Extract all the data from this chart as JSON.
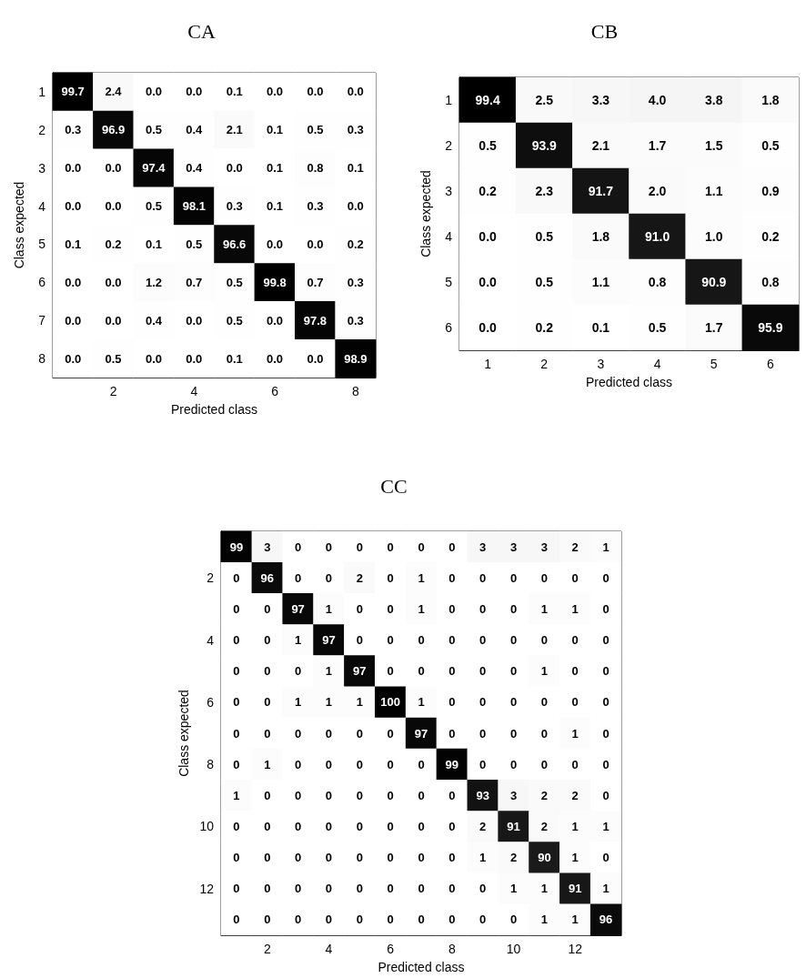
{
  "chart_data": [
    {
      "type": "heatmap",
      "title": "CA",
      "xlabel": "Predicted class",
      "ylabel": "Class expected",
      "data_labels": true,
      "categories": [
        null,
        "2",
        null,
        "4",
        null,
        "6",
        null,
        "8"
      ],
      "y_categories": [
        "1",
        "2",
        "3",
        "4",
        "5",
        "6",
        "7",
        "8"
      ],
      "cells": [
        [
          99.7,
          2.4,
          0.0,
          0.0,
          0.1,
          0.0,
          0.0,
          0.0
        ],
        [
          0.3,
          96.9,
          0.5,
          0.4,
          2.1,
          0.1,
          0.5,
          0.3
        ],
        [
          0.0,
          0.0,
          97.4,
          0.4,
          0.0,
          0.1,
          0.8,
          0.1
        ],
        [
          0.0,
          0.0,
          0.5,
          98.1,
          0.3,
          0.1,
          0.3,
          0.0
        ],
        [
          0.1,
          0.2,
          0.1,
          0.5,
          96.6,
          0.0,
          0.0,
          0.2
        ],
        [
          0.0,
          0.0,
          1.2,
          0.7,
          0.5,
          99.8,
          0.7,
          0.3
        ],
        [
          0.0,
          0.0,
          0.4,
          0.0,
          0.5,
          0.0,
          97.8,
          0.3
        ],
        [
          0.0,
          0.5,
          0.0,
          0.0,
          0.1,
          0.0,
          0.0,
          98.9
        ]
      ],
      "cell_labels": [
        [
          "99.7",
          "2.4",
          "0.0",
          "0.0",
          "0.1",
          "0.0",
          "0.0",
          "0.0"
        ],
        [
          "0.3",
          "96.9",
          "0.5",
          "0.4",
          "2.1",
          "0.1",
          "0.5",
          "0.3"
        ],
        [
          "0.0",
          "0.0",
          "97.4",
          "0.4",
          "0.0",
          "0.1",
          "0.8",
          "0.1"
        ],
        [
          "0.0",
          "0.0",
          "0.5",
          "98.1",
          "0.3",
          "0.1",
          "0.3",
          "0.0"
        ],
        [
          "0.1",
          "0.2",
          "0.1",
          "0.5",
          "96.6",
          "0.0",
          "0.0",
          "0.2"
        ],
        [
          "0.0",
          "0.0",
          "1.2",
          "0.7",
          "0.5",
          "99.8",
          "0.7",
          "0.3"
        ],
        [
          "0.0",
          "0.0",
          "0.4",
          "0.0",
          "0.5",
          "0.0",
          "97.8",
          "0.3"
        ],
        [
          "0.0",
          "0.5",
          "0.0",
          "0.0",
          "0.1",
          "0.0",
          "0.0",
          "98.9"
        ]
      ]
    },
    {
      "type": "heatmap",
      "title": "CB",
      "xlabel": "Predicted class",
      "ylabel": "Class expected",
      "data_labels": true,
      "categories": [
        "1",
        "2",
        "3",
        "4",
        "5",
        "6"
      ],
      "y_categories": [
        "1",
        "2",
        "3",
        "4",
        "5",
        "6"
      ],
      "cells": [
        [
          99.4,
          2.5,
          3.3,
          4.0,
          3.8,
          1.8
        ],
        [
          0.5,
          93.9,
          2.1,
          1.7,
          1.5,
          0.5
        ],
        [
          0.2,
          2.3,
          91.7,
          2.0,
          1.1,
          0.9
        ],
        [
          0.0,
          0.5,
          1.8,
          91.0,
          1.0,
          0.2
        ],
        [
          0.0,
          0.5,
          1.1,
          0.8,
          90.9,
          0.8
        ],
        [
          0.0,
          0.2,
          0.1,
          0.5,
          1.7,
          95.9
        ]
      ],
      "cell_labels": [
        [
          "99.4",
          "2.5",
          "3.3",
          "4.0",
          "3.8",
          "1.8"
        ],
        [
          "0.5",
          "93.9",
          "2.1",
          "1.7",
          "1.5",
          "0.5"
        ],
        [
          "0.2",
          "2.3",
          "91.7",
          "2.0",
          "1.1",
          "0.9"
        ],
        [
          "0.0",
          "0.5",
          "1.8",
          "91.0",
          "1.0",
          "0.2"
        ],
        [
          "0.0",
          "0.5",
          "1.1",
          "0.8",
          "90.9",
          "0.8"
        ],
        [
          "0.0",
          "0.2",
          "0.1",
          "0.5",
          "1.7",
          "95.9"
        ]
      ]
    },
    {
      "type": "heatmap",
      "title": "CC",
      "xlabel": "Predicted class",
      "ylabel": "Class expected",
      "data_labels": true,
      "categories": [
        null,
        "2",
        null,
        "4",
        null,
        "6",
        null,
        "8",
        null,
        "10",
        null,
        "12",
        null
      ],
      "y_categories": [
        null,
        "2",
        null,
        "4",
        null,
        "6",
        null,
        "8",
        null,
        "10",
        null,
        "12",
        null
      ],
      "cells": [
        [
          99,
          3,
          0,
          0,
          0,
          0,
          0,
          0,
          3,
          3,
          3,
          2,
          1
        ],
        [
          0,
          96,
          0,
          0,
          2,
          0,
          1,
          0,
          0,
          0,
          0,
          0,
          0
        ],
        [
          0,
          0,
          97,
          1,
          0,
          0,
          1,
          0,
          0,
          0,
          1,
          1,
          0
        ],
        [
          0,
          0,
          1,
          97,
          0,
          0,
          0,
          0,
          0,
          0,
          0,
          0,
          0
        ],
        [
          0,
          0,
          0,
          1,
          97,
          0,
          0,
          0,
          0,
          0,
          1,
          0,
          0
        ],
        [
          0,
          0,
          1,
          1,
          1,
          100,
          1,
          0,
          0,
          0,
          0,
          0,
          0
        ],
        [
          0,
          0,
          0,
          0,
          0,
          0,
          97,
          0,
          0,
          0,
          0,
          1,
          0
        ],
        [
          0,
          1,
          0,
          0,
          0,
          0,
          0,
          99,
          0,
          0,
          0,
          0,
          0
        ],
        [
          1,
          0,
          0,
          0,
          0,
          0,
          0,
          0,
          93,
          3,
          2,
          2,
          0
        ],
        [
          0,
          0,
          0,
          0,
          0,
          0,
          0,
          0,
          2,
          91,
          2,
          1,
          1
        ],
        [
          0,
          0,
          0,
          0,
          0,
          0,
          0,
          0,
          1,
          2,
          90,
          1,
          0
        ],
        [
          0,
          0,
          0,
          0,
          0,
          0,
          0,
          0,
          0,
          1,
          1,
          91,
          1
        ],
        [
          0,
          0,
          0,
          0,
          0,
          0,
          0,
          0,
          0,
          0,
          1,
          1,
          96
        ]
      ]
    }
  ]
}
